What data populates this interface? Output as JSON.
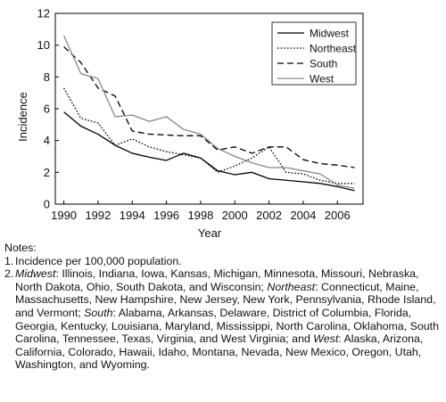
{
  "chart_data": {
    "type": "line",
    "xlabel": "Year",
    "ylabel": "Incidence",
    "xlim": [
      1989.5,
      2007.5
    ],
    "ylim": [
      0,
      12
    ],
    "x_ticks": [
      1990,
      1992,
      1994,
      1996,
      1998,
      2000,
      2002,
      2004,
      2006
    ],
    "y_ticks": [
      0,
      2,
      4,
      6,
      8,
      10,
      12
    ],
    "grid": false,
    "legend_position": "top-right",
    "x": [
      1990,
      1991,
      1992,
      1993,
      1994,
      1995,
      1996,
      1997,
      1998,
      1999,
      2000,
      2001,
      2002,
      2003,
      2004,
      2005,
      2006,
      2007
    ],
    "series": [
      {
        "name": "Midwest",
        "style": "solid",
        "color": "#000000",
        "values": [
          5.8,
          4.9,
          4.4,
          3.7,
          3.2,
          2.95,
          2.75,
          3.2,
          2.9,
          2.1,
          1.85,
          2.0,
          1.6,
          1.5,
          1.4,
          1.3,
          1.1,
          0.85
        ]
      },
      {
        "name": "Northeast",
        "style": "dotted",
        "color": "#000000",
        "values": [
          7.3,
          5.4,
          5.1,
          3.7,
          4.1,
          3.6,
          3.3,
          3.1,
          2.9,
          2.0,
          2.4,
          2.9,
          3.6,
          2.0,
          1.9,
          1.5,
          1.3,
          1.3
        ]
      },
      {
        "name": "South",
        "style": "dashed",
        "color": "#000000",
        "values": [
          9.9,
          8.9,
          7.3,
          6.8,
          4.6,
          4.4,
          4.35,
          4.3,
          4.3,
          3.4,
          3.6,
          3.2,
          3.6,
          3.6,
          2.8,
          2.55,
          2.45,
          2.3
        ]
      },
      {
        "name": "West",
        "style": "solid",
        "color": "#888888",
        "values": [
          10.6,
          8.2,
          7.9,
          5.5,
          5.6,
          5.2,
          5.5,
          4.7,
          4.4,
          3.5,
          3.0,
          2.6,
          2.3,
          2.3,
          2.1,
          1.9,
          1.2,
          1.0
        ]
      }
    ]
  },
  "notes": {
    "heading": "Notes:",
    "items": [
      {
        "number": "1.",
        "text": "Incidence per 100,000 population."
      },
      {
        "number": "2.",
        "segments": [
          {
            "region": "Midwest",
            "states": ": Illinois, Indiana, Iowa, Kansas, Michigan, Minnesota, Missouri, Nebraska, North Dakota, Ohio, South Dakota, and Wisconsin; "
          },
          {
            "region": "Northeast",
            "states": ": Connecticut, Maine, Massachusetts, New Hampshire, New Jersey, New York, Pennsylvania, Rhode Island, and Vermont; "
          },
          {
            "region": "South",
            "states": ": Alabama, Arkansas, Delaware, District of Columbia, Florida, Georgia, Kentucky, Louisiana, Maryland, Mississippi, North Carolina, Oklahoma, South Carolina, Tennessee, Texas, Virginia, and West Virginia; and "
          },
          {
            "region": "West",
            "states": ": Alaska, Arizona, California, Colorado, Hawaii, Idaho, Montana, Nevada, New Mexico, Oregon, Utah, Washington, and Wyoming."
          }
        ]
      }
    ]
  }
}
